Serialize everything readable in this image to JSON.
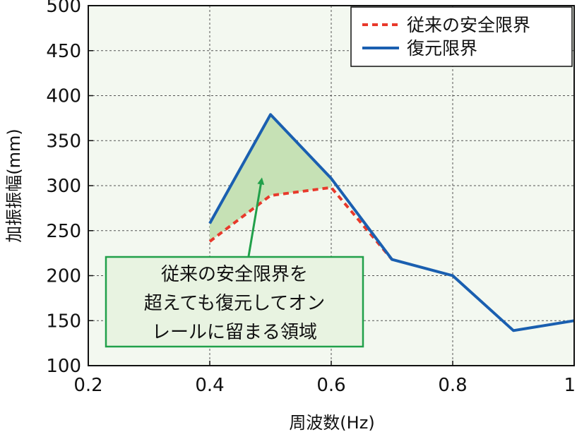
{
  "chart_data": {
    "type": "line",
    "title": "",
    "xlabel": "周波数(Hz)",
    "ylabel": "加振振幅(mm)",
    "xlim": [
      0.2,
      1.0
    ],
    "ylim": [
      100,
      500
    ],
    "xticks": [
      "0.2",
      "0.4",
      "0.6",
      "0.8",
      "1"
    ],
    "yticks": [
      "100",
      "150",
      "200",
      "250",
      "300",
      "350",
      "400",
      "450",
      "500"
    ],
    "grid": true,
    "legend_position": "top-right",
    "series": [
      {
        "name": "従来の安全限界",
        "style": "dashed",
        "color": "#e8392b",
        "x": [
          0.4,
          0.5,
          0.6,
          0.7
        ],
        "y": [
          238,
          289,
          298,
          218
        ]
      },
      {
        "name": "復元限界",
        "style": "solid",
        "color": "#1a5fb0",
        "x": [
          0.4,
          0.5,
          0.6,
          0.7,
          0.8,
          0.9,
          1.0
        ],
        "y": [
          258,
          379,
          308,
          218,
          200,
          139,
          150
        ]
      }
    ],
    "shaded_region": {
      "between": [
        "従来の安全限界",
        "復元限界"
      ],
      "x_range": [
        0.4,
        0.6
      ],
      "color": "#c6e1b5"
    },
    "annotation": {
      "lines": [
        "従来の安全限界を",
        "超えても復元してオン",
        "レールに留まる領域"
      ],
      "arrow_target": {
        "x": 0.485,
        "y": 310
      },
      "border_color": "#21a04a",
      "fill_color": "#e8f3e1"
    },
    "colors": {
      "plot_background": "#f3f8f0",
      "grid": "#555555"
    }
  }
}
